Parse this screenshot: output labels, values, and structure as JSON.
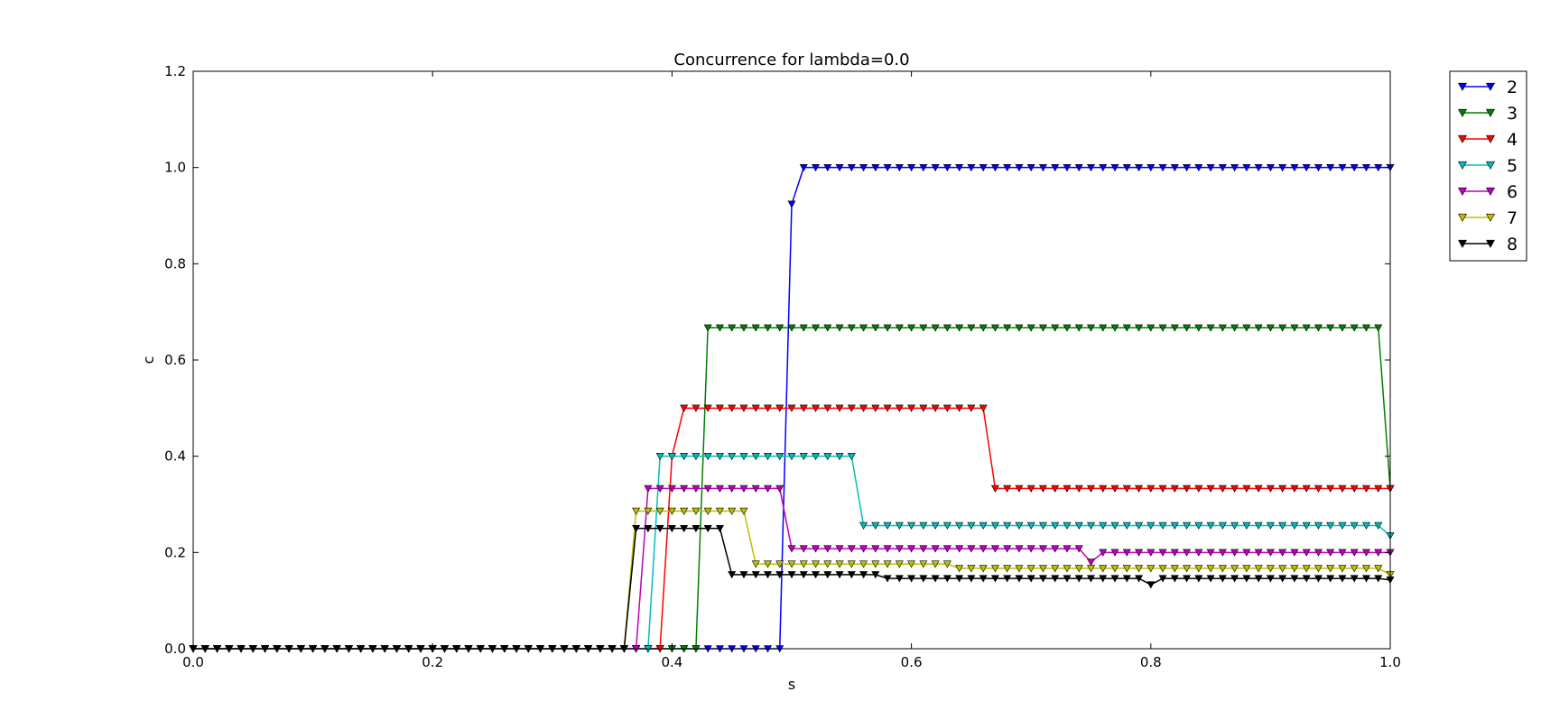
{
  "chart_data": {
    "type": "line",
    "title": "Concurrence for lambda=0.0",
    "xlabel": "s",
    "ylabel": "c",
    "xlim": [
      0.0,
      1.0
    ],
    "ylim": [
      0.0,
      1.2
    ],
    "xticks": [
      "0.0",
      "0.2",
      "0.4",
      "0.6",
      "0.8",
      "1.0"
    ],
    "yticks": [
      "0.0",
      "0.2",
      "0.4",
      "0.6",
      "0.8",
      "1.0",
      "1.2"
    ],
    "grid": false,
    "legend_position": "outside top-right",
    "marker": "triangle-down",
    "x_step": 0.01,
    "series": [
      {
        "name": "2",
        "color": "#0000ff",
        "steps": [
          [
            0.0,
            0.0
          ],
          [
            0.5,
            0.924
          ],
          [
            0.51,
            1.0
          ]
        ]
      },
      {
        "name": "3",
        "color": "#008000",
        "steps": [
          [
            0.0,
            0.0
          ],
          [
            0.43,
            0.667
          ],
          [
            1.0,
            0.333
          ]
        ]
      },
      {
        "name": "4",
        "color": "#ff0000",
        "steps": [
          [
            0.0,
            0.0
          ],
          [
            0.4,
            0.4
          ],
          [
            0.41,
            0.5
          ],
          [
            0.67,
            0.333
          ]
        ]
      },
      {
        "name": "5",
        "color": "#00bfbf",
        "steps": [
          [
            0.0,
            0.0
          ],
          [
            0.39,
            0.4
          ],
          [
            0.56,
            0.256
          ],
          [
            1.0,
            0.235
          ]
        ]
      },
      {
        "name": "6",
        "color": "#bf00bf",
        "steps": [
          [
            0.0,
            0.0
          ],
          [
            0.38,
            0.333
          ],
          [
            0.5,
            0.208
          ],
          [
            0.75,
            0.18
          ],
          [
            0.76,
            0.2
          ]
        ]
      },
      {
        "name": "7",
        "color": "#bfbf00",
        "steps": [
          [
            0.0,
            0.0
          ],
          [
            0.37,
            0.286
          ],
          [
            0.47,
            0.176
          ],
          [
            0.64,
            0.167
          ],
          [
            1.0,
            0.154
          ]
        ]
      },
      {
        "name": "8",
        "color": "#000000",
        "steps": [
          [
            0.0,
            0.0
          ],
          [
            0.37,
            0.25
          ],
          [
            0.45,
            0.154
          ],
          [
            0.58,
            0.146
          ],
          [
            0.8,
            0.133
          ],
          [
            0.81,
            0.146
          ],
          [
            1.0,
            0.143
          ]
        ]
      }
    ]
  }
}
